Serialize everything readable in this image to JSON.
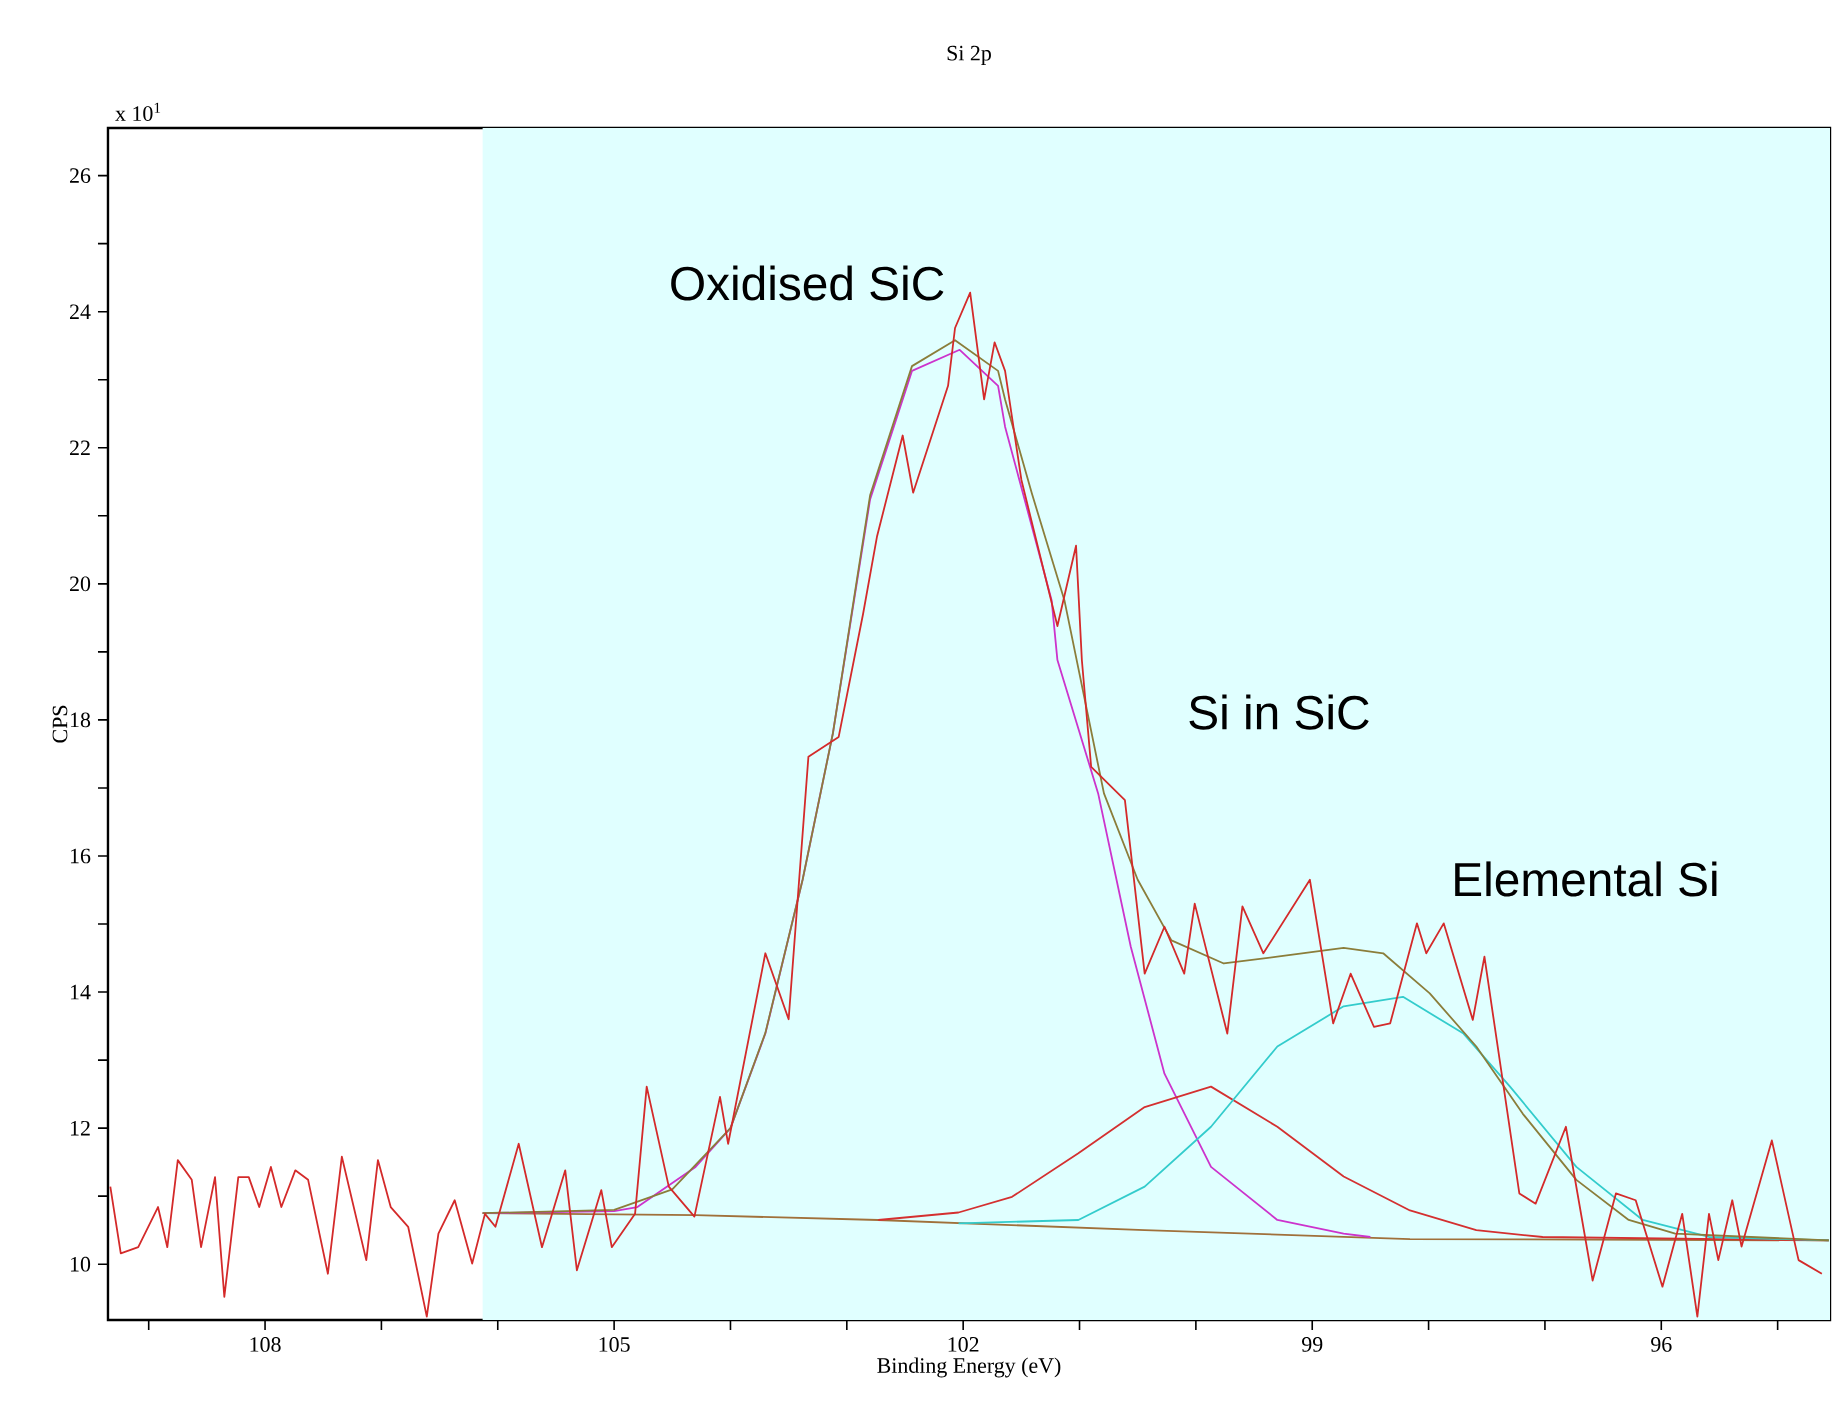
{
  "chart_data": {
    "type": "line",
    "title": "Si 2p",
    "xlabel": "Binding Energy (eV)",
    "ylabel": "CPS",
    "annotations": [
      "x 10$^{1}$",
      "Oxidised SiC",
      "Si in SiC",
      "Elemental Si"
    ],
    "xlim": [
      109.35,
      94.55
    ],
    "ylim": [
      9.18,
      26.7
    ],
    "xticks": [
      {
        "value": 109,
        "label": null
      },
      108,
      {
        "value": 107,
        "label": null
      },
      {
        "value": 106,
        "label": null
      },
      105,
      {
        "value": 104,
        "label": null
      },
      {
        "value": 103,
        "label": null
      },
      102,
      {
        "value": 101,
        "label": null
      },
      {
        "value": 100,
        "label": null
      },
      99,
      {
        "value": 98,
        "label": null
      },
      {
        "value": 97,
        "label": null
      },
      96,
      {
        "value": 95,
        "label": null
      }
    ],
    "yticks": [
      10,
      {
        "value": 11,
        "label": null
      },
      12,
      {
        "value": 13,
        "label": null
      },
      14,
      {
        "value": 15,
        "label": null
      },
      16,
      {
        "value": 17,
        "label": null
      },
      18,
      {
        "value": 19,
        "label": null
      },
      20,
      {
        "value": 21,
        "label": null
      },
      22,
      {
        "value": 23,
        "label": null
      },
      24,
      {
        "value": 25,
        "label": null
      },
      26
    ],
    "bands": [
      {
        "axis": "x",
        "from": 106.13,
        "to": 94.55,
        "color": "#e0ffff"
      }
    ],
    "marker": "none",
    "line_style": "solid",
    "series": [
      {
        "color": "#a0703a",
        "x": [
          106.13,
          104.3,
          102.73,
          100.44,
          98.16,
          94.56
        ],
        "values": [
          10.75,
          10.72,
          10.65,
          10.5,
          10.37,
          10.35
        ]
      },
      {
        "color": "#cc33cc",
        "x": [
          106.13,
          105.0,
          104.8,
          104.3,
          104.0,
          103.7,
          103.38,
          103.12,
          102.8,
          102.44,
          102.03,
          101.7,
          101.64,
          101.24,
          101.19,
          100.84,
          100.56,
          100.27,
          99.87,
          99.3,
          98.73,
          98.5
        ],
        "values": [
          10.75,
          10.78,
          10.84,
          11.43,
          12.0,
          13.39,
          15.65,
          17.8,
          21.24,
          23.13,
          23.44,
          22.91,
          22.31,
          19.76,
          18.88,
          16.92,
          14.67,
          12.8,
          11.43,
          10.65,
          10.45,
          10.4
        ]
      },
      {
        "color": "#d43030",
        "x": [
          102.73,
          102.04,
          101.58,
          101.01,
          100.44,
          99.87,
          99.3,
          98.73,
          98.16,
          97.59,
          97.02,
          94.56
        ],
        "values": [
          10.65,
          10.76,
          10.99,
          11.63,
          12.31,
          12.61,
          12.02,
          11.29,
          10.79,
          10.5,
          10.4,
          10.35
        ]
      },
      {
        "color": "#33cccc",
        "x": [
          102.04,
          101.01,
          100.44,
          99.87,
          99.3,
          98.73,
          98.22,
          97.7,
          97.3,
          96.73,
          96.16,
          95.59,
          94.56
        ],
        "values": [
          10.6,
          10.65,
          11.14,
          12.02,
          13.2,
          13.79,
          13.93,
          13.39,
          12.61,
          11.43,
          10.65,
          10.4,
          10.35
        ]
      },
      {
        "color": "#8b7d3a",
        "x": [
          106.13,
          105.0,
          104.5,
          104.0,
          103.7,
          103.38,
          103.12,
          102.8,
          102.44,
          102.07,
          101.7,
          101.64,
          101.41,
          101.13,
          100.79,
          100.5,
          100.21,
          99.76,
          99.3,
          98.73,
          98.39,
          97.99,
          97.59,
          97.19,
          96.73,
          96.28,
          95.88,
          94.56
        ],
        "values": [
          10.75,
          10.8,
          11.1,
          12.0,
          13.4,
          15.65,
          17.8,
          21.3,
          23.2,
          23.58,
          23.13,
          22.71,
          21.33,
          19.76,
          16.92,
          15.65,
          14.76,
          14.42,
          14.52,
          14.65,
          14.57,
          13.98,
          13.2,
          12.21,
          11.24,
          10.65,
          10.45,
          10.35
        ]
      },
      {
        "color": "#d42a2a",
        "x": [
          109.33,
          109.24,
          109.09,
          108.92,
          108.84,
          108.75,
          108.63,
          108.55,
          108.43,
          108.35,
          108.23,
          108.14,
          108.05,
          107.95,
          107.86,
          107.74,
          107.63,
          107.46,
          107.34,
          107.13,
          107.03,
          106.92,
          106.77,
          106.61,
          106.51,
          106.37,
          106.22,
          106.11,
          106.02,
          105.82,
          105.62,
          105.42,
          105.32,
          105.11,
          105.02,
          104.82,
          104.72,
          104.53,
          104.31,
          104.09,
          104.02,
          103.7,
          103.5,
          103.33,
          103.07,
          102.86,
          102.74,
          102.52,
          102.43,
          102.13,
          102.07,
          101.94,
          101.82,
          101.73,
          101.64,
          101.5,
          101.19,
          101.03,
          100.98,
          100.9,
          100.61,
          100.44,
          100.27,
          100.1,
          100.01,
          99.73,
          99.6,
          99.42,
          99.02,
          98.82,
          98.67,
          98.47,
          98.33,
          98.1,
          98.02,
          97.87,
          97.62,
          97.52,
          97.22,
          97.08,
          96.82,
          96.59,
          96.39,
          96.22,
          95.99,
          95.82,
          95.69,
          95.59,
          95.51,
          95.39,
          95.31,
          95.05,
          94.82,
          94.62
        ],
        "values": [
          11.14,
          10.16,
          10.25,
          10.84,
          10.25,
          11.53,
          11.24,
          10.25,
          11.28,
          9.52,
          11.28,
          11.28,
          10.84,
          11.43,
          10.84,
          11.38,
          11.24,
          9.86,
          11.58,
          10.06,
          11.53,
          10.84,
          10.55,
          9.23,
          10.45,
          10.94,
          10.01,
          10.74,
          10.55,
          11.77,
          10.25,
          11.38,
          9.91,
          11.09,
          10.25,
          10.74,
          12.61,
          11.14,
          10.7,
          12.46,
          11.77,
          14.57,
          13.6,
          17.46,
          17.75,
          19.56,
          20.7,
          22.18,
          21.34,
          22.91,
          23.76,
          24.28,
          22.71,
          23.55,
          23.13,
          21.53,
          19.38,
          20.56,
          18.88,
          17.31,
          16.82,
          14.27,
          14.96,
          14.27,
          15.3,
          13.39,
          15.26,
          14.57,
          15.65,
          13.54,
          14.27,
          13.49,
          13.54,
          15.01,
          14.57,
          15.01,
          13.59,
          14.52,
          11.04,
          10.89,
          12.02,
          9.76,
          11.04,
          10.94,
          9.67,
          10.74,
          9.23,
          10.74,
          10.06,
          10.94,
          10.26,
          11.82,
          10.06,
          9.86
        ]
      }
    ]
  }
}
